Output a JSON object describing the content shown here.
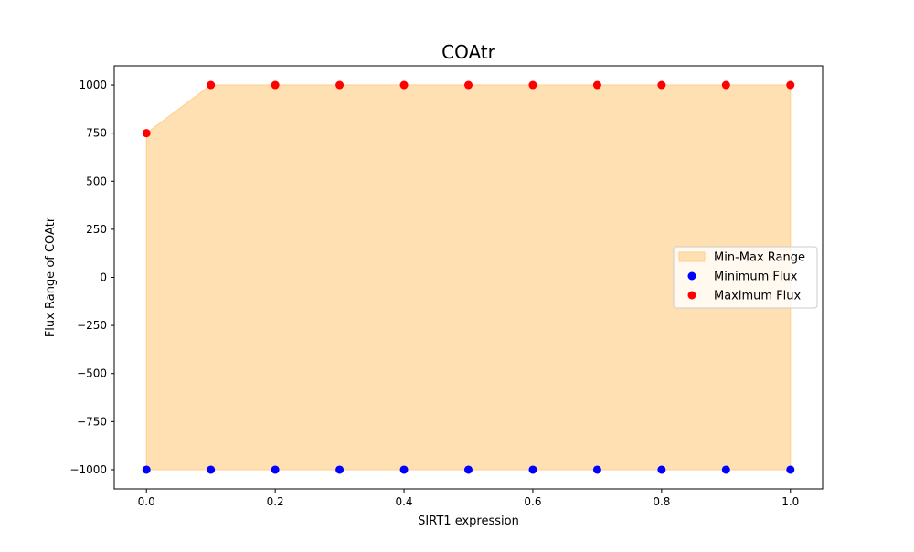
{
  "chart_data": {
    "type": "scatter",
    "title": "COAtr",
    "xlabel": "SIRT1 expression",
    "ylabel": "Flux Range of COAtr",
    "xlim": [
      -0.05,
      1.05
    ],
    "ylim": [
      -1100,
      1100
    ],
    "xticks": [
      0.0,
      0.2,
      0.4,
      0.6,
      0.8,
      1.0
    ],
    "xtick_labels": [
      "0.0",
      "0.2",
      "0.4",
      "0.6",
      "0.8",
      "1.0"
    ],
    "yticks": [
      -1000,
      -750,
      -500,
      -250,
      0,
      250,
      500,
      750,
      1000
    ],
    "ytick_labels": [
      "−1000",
      "−750",
      "−500",
      "−250",
      "0",
      "250",
      "500",
      "750",
      "1000"
    ],
    "grid": false,
    "legend_position": "center-right",
    "x": [
      0.0,
      0.1,
      0.2,
      0.3,
      0.4,
      0.5,
      0.6,
      0.7,
      0.8,
      0.9,
      1.0
    ],
    "series": [
      {
        "name": "Min-Max Range",
        "kind": "fill_between",
        "color": "#ffe0b2",
        "edge_color": "#fcd08a",
        "lower": [
          -1000,
          -1000,
          -1000,
          -1000,
          -1000,
          -1000,
          -1000,
          -1000,
          -1000,
          -1000,
          -1000
        ],
        "upper": [
          750,
          1000,
          1000,
          1000,
          1000,
          1000,
          1000,
          1000,
          1000,
          1000,
          1000
        ]
      },
      {
        "name": "Minimum Flux",
        "kind": "scatter",
        "color": "#0000ff",
        "values": [
          -1000,
          -1000,
          -1000,
          -1000,
          -1000,
          -1000,
          -1000,
          -1000,
          -1000,
          -1000,
          -1000
        ]
      },
      {
        "name": "Maximum Flux",
        "kind": "scatter",
        "color": "#ff0000",
        "values": [
          750,
          1000,
          1000,
          1000,
          1000,
          1000,
          1000,
          1000,
          1000,
          1000,
          1000
        ]
      }
    ]
  }
}
